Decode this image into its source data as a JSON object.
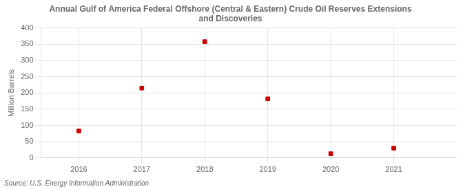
{
  "chart_data": {
    "type": "scatter",
    "title": "Annual Gulf of America Federal Offshore (Central & Eastern) Crude Oil Reserves Extensions\nand Discoveries",
    "ylabel": "Million Barrels",
    "source": "Source: U.S. Energy Information Administration",
    "x": [
      2016,
      2017,
      2018,
      2019,
      2020,
      2021
    ],
    "values": [
      83,
      215,
      358,
      182,
      13,
      30
    ],
    "xlim": [
      2015.4,
      2022.0
    ],
    "xticks": [
      2016,
      2017,
      2018,
      2019,
      2020,
      2021
    ],
    "ylim": [
      0,
      400
    ],
    "yticks": [
      0,
      50,
      100,
      150,
      200,
      250,
      300,
      350,
      400
    ],
    "color": "#cc0000",
    "marker": "square",
    "grid": true
  }
}
